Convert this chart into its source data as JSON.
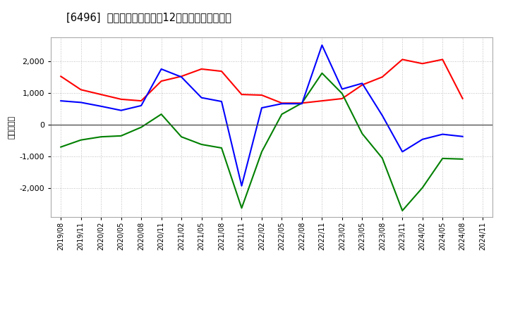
{
  "title": "[6496]  キャッシュフローの12か月移動合計の推移",
  "ylabel": "（百万円）",
  "background_color": "#ffffff",
  "plot_bg_color": "#ffffff",
  "grid_color": "#aaaaaa",
  "x_labels": [
    "2019/08",
    "2019/11",
    "2020/02",
    "2020/05",
    "2020/08",
    "2020/11",
    "2021/02",
    "2021/05",
    "2021/08",
    "2021/11",
    "2022/02",
    "2022/05",
    "2022/08",
    "2022/11",
    "2023/02",
    "2023/05",
    "2023/08",
    "2023/11",
    "2024/02",
    "2024/05",
    "2024/08",
    "2024/11"
  ],
  "operating_cf": [
    1520,
    1100,
    950,
    800,
    750,
    1370,
    1520,
    1750,
    1680,
    950,
    930,
    680,
    680,
    750,
    820,
    1250,
    1500,
    2050,
    1920,
    2050,
    820,
    null
  ],
  "investing_cf": [
    -700,
    -480,
    -380,
    -350,
    -80,
    330,
    -380,
    -620,
    -730,
    -2620,
    -850,
    330,
    680,
    1620,
    980,
    -280,
    -1050,
    -2700,
    -1980,
    -1060,
    -1080,
    null
  ],
  "free_cf": [
    750,
    700,
    580,
    450,
    600,
    1750,
    1500,
    850,
    730,
    -1920,
    530,
    660,
    660,
    2500,
    1120,
    1300,
    290,
    -850,
    -460,
    -300,
    -370,
    null
  ],
  "ylim": [
    -2900,
    2750
  ],
  "yticks": [
    -2000,
    -1000,
    0,
    1000,
    2000
  ],
  "line_colors": {
    "operating": "#ff0000",
    "investing": "#008000",
    "free": "#0000ff"
  }
}
